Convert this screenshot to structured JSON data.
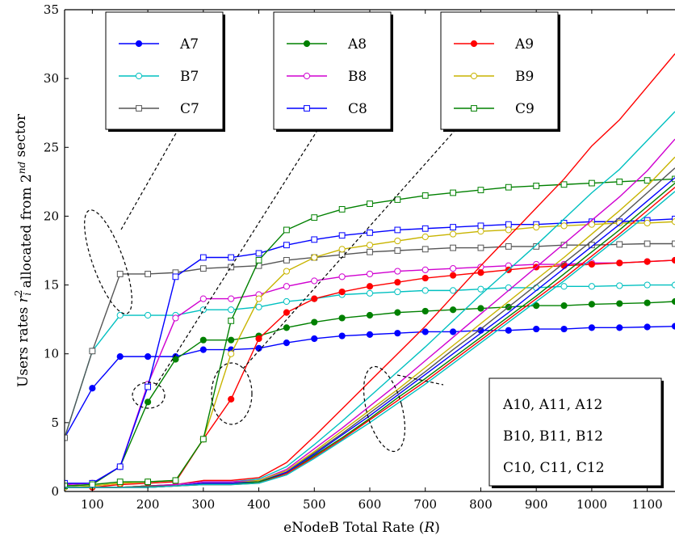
{
  "chart_data": {
    "type": "line",
    "xlabel": "eNodeB Total Rate (R)",
    "ylabel": "Users rates r_i^2 allocated from 2^nd sector",
    "xlim": [
      50,
      1150
    ],
    "ylim": [
      0,
      35
    ],
    "xticks": [
      100,
      200,
      300,
      400,
      500,
      600,
      700,
      800,
      900,
      1000,
      1100
    ],
    "yticks": [
      0,
      5,
      10,
      15,
      20,
      25,
      30,
      35
    ],
    "grid": false,
    "x": [
      50,
      100,
      150,
      200,
      250,
      300,
      350,
      400,
      450,
      500,
      550,
      600,
      650,
      700,
      750,
      800,
      850,
      900,
      950,
      1000,
      1050,
      1100,
      1150
    ],
    "series": [
      {
        "name": "A7",
        "color": "#0000ff",
        "marker": "filled-circle",
        "values": [
          3.9,
          7.5,
          9.8,
          9.8,
          9.8,
          10.3,
          10.3,
          10.4,
          10.8,
          11.1,
          11.3,
          11.4,
          11.5,
          11.6,
          11.6,
          11.7,
          11.7,
          11.8,
          11.8,
          11.9,
          11.9,
          11.95,
          12.0
        ]
      },
      {
        "name": "B7",
        "color": "#00c0c0",
        "marker": "open-circle",
        "values": [
          3.9,
          10.2,
          12.8,
          12.8,
          12.8,
          13.2,
          13.2,
          13.4,
          13.8,
          14.0,
          14.3,
          14.4,
          14.5,
          14.6,
          14.6,
          14.7,
          14.8,
          14.8,
          14.9,
          14.9,
          14.95,
          15.0,
          15.0
        ]
      },
      {
        "name": "C7",
        "color": "#555555",
        "marker": "open-square",
        "values": [
          3.9,
          10.2,
          15.8,
          15.8,
          15.9,
          16.2,
          16.3,
          16.4,
          16.8,
          17.0,
          17.2,
          17.4,
          17.5,
          17.6,
          17.7,
          17.7,
          17.8,
          17.8,
          17.9,
          17.9,
          17.95,
          18.0,
          18.0
        ]
      },
      {
        "name": "A8",
        "color": "#008000",
        "marker": "filled-circle",
        "values": [
          0.4,
          0.5,
          1.8,
          6.5,
          9.6,
          11.0,
          11.0,
          11.3,
          11.9,
          12.3,
          12.6,
          12.8,
          13.0,
          13.1,
          13.2,
          13.3,
          13.4,
          13.5,
          13.5,
          13.6,
          13.65,
          13.7,
          13.8
        ]
      },
      {
        "name": "B8",
        "color": "#d000d0",
        "marker": "open-circle",
        "values": [
          0.5,
          0.6,
          1.8,
          7.8,
          12.6,
          14.0,
          14.0,
          14.3,
          14.9,
          15.3,
          15.6,
          15.8,
          16.0,
          16.1,
          16.2,
          16.3,
          16.4,
          16.5,
          16.5,
          16.6,
          16.6,
          16.7,
          16.8
        ]
      },
      {
        "name": "C8",
        "color": "#0000ff",
        "marker": "open-square",
        "values": [
          0.6,
          0.6,
          1.8,
          7.6,
          15.6,
          17.0,
          17.0,
          17.3,
          17.9,
          18.3,
          18.6,
          18.8,
          19.0,
          19.1,
          19.2,
          19.3,
          19.4,
          19.4,
          19.5,
          19.6,
          19.6,
          19.7,
          19.8
        ]
      },
      {
        "name": "A9",
        "color": "#ff0000",
        "marker": "filled-circle",
        "values": [
          0.3,
          0.3,
          0.5,
          0.6,
          0.7,
          3.8,
          6.7,
          11.1,
          13.0,
          14.0,
          14.5,
          14.9,
          15.2,
          15.5,
          15.7,
          15.9,
          16.1,
          16.3,
          16.4,
          16.5,
          16.6,
          16.7,
          16.8
        ]
      },
      {
        "name": "B9",
        "color": "#c8b400",
        "marker": "open-circle",
        "values": [
          0.3,
          0.4,
          0.6,
          0.7,
          0.8,
          3.8,
          10.0,
          14.0,
          16.0,
          17.0,
          17.6,
          17.9,
          18.2,
          18.5,
          18.7,
          18.9,
          19.0,
          19.2,
          19.3,
          19.4,
          19.5,
          19.5,
          19.6
        ]
      },
      {
        "name": "C9",
        "color": "#008000",
        "marker": "open-square",
        "values": [
          0.4,
          0.5,
          0.7,
          0.7,
          0.8,
          3.8,
          12.4,
          16.8,
          19.0,
          19.9,
          20.5,
          20.9,
          21.2,
          21.5,
          21.7,
          21.9,
          22.1,
          22.2,
          22.3,
          22.4,
          22.5,
          22.6,
          22.7
        ]
      },
      {
        "name": "A10",
        "color": "#ff0000",
        "marker": "none",
        "values": [
          0.3,
          0.3,
          0.3,
          0.4,
          0.5,
          0.8,
          0.8,
          1.0,
          2.1,
          4.0,
          6.0,
          8.0,
          10.0,
          12.0,
          14.2,
          16.4,
          18.5,
          20.6,
          22.7,
          25.1,
          27.0,
          29.4,
          31.8
        ]
      },
      {
        "name": "A11",
        "color": "#00c0c0",
        "marker": "none",
        "values": [
          0.3,
          0.3,
          0.3,
          0.4,
          0.5,
          0.7,
          0.7,
          0.9,
          1.8,
          3.4,
          5.1,
          6.9,
          8.7,
          10.5,
          12.4,
          14.3,
          16.1,
          17.9,
          19.8,
          21.7,
          23.4,
          25.5,
          27.6
        ]
      },
      {
        "name": "A12",
        "color": "#d000d0",
        "marker": "none",
        "values": [
          0.3,
          0.3,
          0.3,
          0.4,
          0.5,
          0.7,
          0.7,
          0.8,
          1.6,
          3.1,
          4.6,
          6.2,
          7.8,
          9.5,
          11.2,
          12.9,
          14.6,
          16.3,
          18.0,
          19.7,
          21.4,
          23.3,
          25.6
        ]
      },
      {
        "name": "B10",
        "color": "#c8b400",
        "marker": "none",
        "values": [
          0.3,
          0.3,
          0.3,
          0.4,
          0.4,
          0.6,
          0.6,
          0.8,
          1.5,
          2.9,
          4.4,
          5.9,
          7.4,
          9.0,
          10.6,
          12.2,
          13.8,
          15.4,
          17.0,
          18.7,
          20.4,
          22.2,
          24.3
        ]
      },
      {
        "name": "B11",
        "color": "#555555",
        "marker": "none",
        "values": [
          0.3,
          0.3,
          0.3,
          0.4,
          0.4,
          0.6,
          0.6,
          0.7,
          1.4,
          2.8,
          4.2,
          5.7,
          7.2,
          8.7,
          10.3,
          11.8,
          13.4,
          15.0,
          16.6,
          18.2,
          19.9,
          21.7,
          23.5
        ]
      },
      {
        "name": "B12",
        "color": "#0000ff",
        "marker": "none",
        "values": [
          0.3,
          0.3,
          0.3,
          0.3,
          0.4,
          0.6,
          0.6,
          0.7,
          1.4,
          2.7,
          4.1,
          5.5,
          7.0,
          8.5,
          10.0,
          11.5,
          13.0,
          14.6,
          16.2,
          17.8,
          19.4,
          21.1,
          22.8
        ]
      },
      {
        "name": "C10",
        "color": "#008000",
        "marker": "none",
        "values": [
          0.3,
          0.3,
          0.3,
          0.3,
          0.4,
          0.5,
          0.5,
          0.7,
          1.3,
          2.6,
          3.9,
          5.3,
          6.8,
          8.2,
          9.7,
          11.2,
          12.7,
          14.2,
          15.8,
          17.4,
          19.0,
          20.7,
          22.4
        ]
      },
      {
        "name": "C11",
        "color": "#ff0000",
        "marker": "none",
        "values": [
          0.3,
          0.3,
          0.3,
          0.3,
          0.4,
          0.5,
          0.5,
          0.6,
          1.3,
          2.5,
          3.8,
          5.2,
          6.6,
          8.0,
          9.5,
          11.0,
          12.5,
          14.0,
          15.5,
          17.1,
          18.7,
          20.4,
          22.1
        ]
      },
      {
        "name": "C12",
        "color": "#00c0c0",
        "marker": "none",
        "values": [
          0.3,
          0.3,
          0.3,
          0.3,
          0.4,
          0.5,
          0.5,
          0.6,
          1.2,
          2.4,
          3.7,
          5.0,
          6.4,
          7.8,
          9.3,
          10.8,
          12.3,
          13.8,
          15.3,
          16.9,
          18.5,
          20.1,
          21.8
        ]
      }
    ],
    "legends": [
      {
        "entries": [
          "A7",
          "B7",
          "C7"
        ]
      },
      {
        "entries": [
          "A8",
          "B8",
          "C8"
        ]
      },
      {
        "entries": [
          "A9",
          "B9",
          "C9"
        ]
      }
    ],
    "annotation_lines": [
      "A10, A11, A12",
      "B10, B11, B12",
      "C10, C11, C12"
    ]
  }
}
